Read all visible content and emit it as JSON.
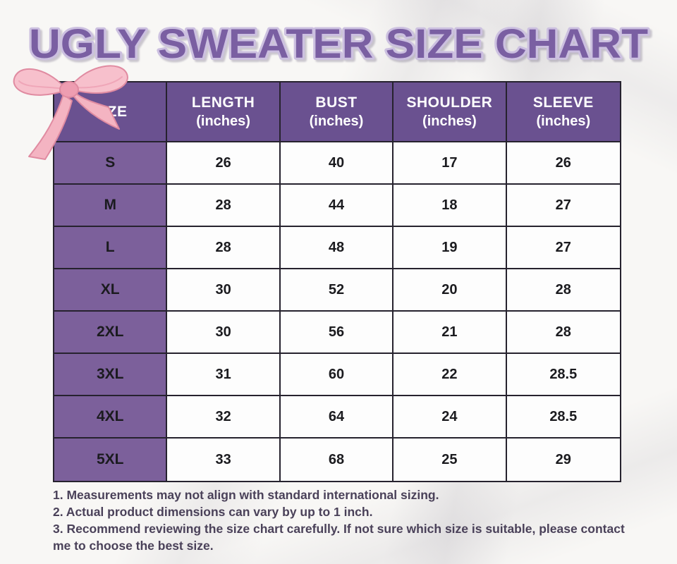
{
  "title": "UGLY SWEATER SIZE CHART",
  "decor": {
    "bow_icon": "pink-watercolor-ribbon-bow"
  },
  "colors": {
    "title_fill": "#7a5fa2",
    "title_outline": "#ccc0e0",
    "header_bg": "#6a5190",
    "size_column_bg": "#7c609b",
    "cell_bg": "#fdfdfd",
    "grid_border": "#26222e",
    "notes_text": "#4a4159",
    "bow_pink": "#f7c0cc"
  },
  "chart_data": {
    "type": "table",
    "title": "UGLY SWEATER SIZE CHART",
    "columns": [
      {
        "label": "SIZE",
        "unit": ""
      },
      {
        "label": "LENGTH",
        "unit": "(inches)"
      },
      {
        "label": "BUST",
        "unit": "(inches)"
      },
      {
        "label": "SHOULDER",
        "unit": "(inches)"
      },
      {
        "label": "SLEEVE",
        "unit": "(inches)"
      }
    ],
    "rows": [
      {
        "size": "S",
        "values": [
          "26",
          "40",
          "17",
          "26"
        ]
      },
      {
        "size": "M",
        "values": [
          "28",
          "44",
          "18",
          "27"
        ]
      },
      {
        "size": "L",
        "values": [
          "28",
          "48",
          "19",
          "27"
        ]
      },
      {
        "size": "XL",
        "values": [
          "30",
          "52",
          "20",
          "28"
        ]
      },
      {
        "size": "2XL",
        "values": [
          "30",
          "56",
          "21",
          "28"
        ]
      },
      {
        "size": "3XL",
        "values": [
          "31",
          "60",
          "22",
          "28.5"
        ]
      },
      {
        "size": "4XL",
        "values": [
          "32",
          "64",
          "24",
          "28.5"
        ]
      },
      {
        "size": "5XL",
        "values": [
          "33",
          "68",
          "25",
          "29"
        ]
      }
    ]
  },
  "notes": [
    "1. Measurements may not align with standard international sizing.",
    "2. Actual product dimensions can vary by up to 1 inch.",
    "3. Recommend reviewing the size chart carefully. If not sure which size is suitable, please contact me to choose the best size."
  ]
}
